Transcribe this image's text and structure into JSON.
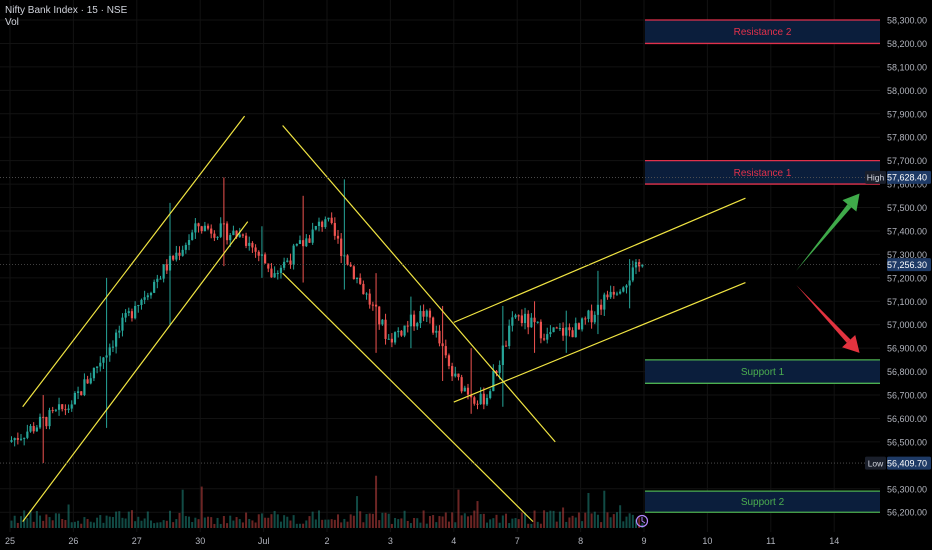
{
  "header": {
    "symbol_line": "Nifty Bank Index · 15 · NSE",
    "volume_label": "Vol"
  },
  "colors": {
    "background": "#000000",
    "up": "#26a69a",
    "down": "#ef5350",
    "channel": "#f0e442",
    "resistance": "#e0314b",
    "support": "#4caf50",
    "zone_fill": "#0b1e3c",
    "axis_text": "#b2b5be",
    "grid": "#121212",
    "arrow_up": "#3faa4a",
    "arrow_down": "#e2333f"
  },
  "chart_data": {
    "type": "candlestick",
    "symbol": "Nifty Bank Index",
    "interval": "15",
    "exchange": "NSE",
    "x_tick_labels": [
      "25",
      "26",
      "27",
      "30",
      "Jul",
      "2",
      "3",
      "4",
      "7",
      "8",
      "9",
      "10",
      "11",
      "14"
    ],
    "y_tick_labels": [
      "58,300.00",
      "58,200.00",
      "58,100.00",
      "58,000.00",
      "57,900.00",
      "57,800.00",
      "57,700.00",
      "57,600.00",
      "57,500.00",
      "57,400.00",
      "57,300.00",
      "57,200.00",
      "57,100.00",
      "57,000.00",
      "56,900.00",
      "56,800.00",
      "56,700.00",
      "56,600.00",
      "56,500.00",
      "56,300.00",
      "56,200.00"
    ],
    "ylim": [
      56150,
      58350
    ],
    "grid": true,
    "price_labels": [
      {
        "tag": "High",
        "value": "57,628.40",
        "price": 57628.4
      },
      {
        "tag": "",
        "value": "57,256.30",
        "price": 57256.3
      },
      {
        "tag": "Low",
        "value": "56,409.70",
        "price": 56409.7
      }
    ],
    "zones": [
      {
        "label": "Resistance 2",
        "kind": "resistance",
        "top": 58300,
        "bottom": 58200
      },
      {
        "label": "Resistance 1",
        "kind": "resistance",
        "top": 57700,
        "bottom": 57600
      },
      {
        "label": "Support 1",
        "kind": "support",
        "top": 56850,
        "bottom": 56750
      },
      {
        "label": "Support 2",
        "kind": "support",
        "top": 56290,
        "bottom": 56200
      }
    ],
    "channels": [
      {
        "name": "rising-channel-1",
        "lines": [
          [
            [
              0.2,
              56650
            ],
            [
              3.7,
              57890
            ]
          ],
          [
            [
              0.2,
              56160
            ],
            [
              3.75,
              57440
            ]
          ]
        ]
      },
      {
        "name": "falling-channel",
        "lines": [
          [
            [
              4.3,
              57850
            ],
            [
              8.6,
              56500
            ]
          ],
          [
            [
              4.3,
              57220
            ],
            [
              8.25,
              56160
            ]
          ]
        ]
      },
      {
        "name": "rising-channel-2",
        "lines": [
          [
            [
              7.0,
              57010
            ],
            [
              11.6,
              57540
            ]
          ],
          [
            [
              7.0,
              56670
            ],
            [
              11.6,
              57180
            ]
          ]
        ]
      }
    ],
    "arrows": [
      {
        "direction": "up",
        "from": [
          12.4,
          57230
        ],
        "to": [
          13.4,
          57560
        ]
      },
      {
        "direction": "down",
        "from": [
          12.4,
          57170
        ],
        "to": [
          13.4,
          56880
        ]
      }
    ],
    "segments": [
      {
        "start": 0.0,
        "end": 1.0,
        "open": 56500,
        "close": 56660,
        "low": 56409.7,
        "high": 56700
      },
      {
        "start": 1.0,
        "end": 2.0,
        "open": 56660,
        "close": 57080,
        "low": 56560,
        "high": 57200
      },
      {
        "start": 2.0,
        "end": 3.0,
        "open": 57080,
        "close": 57420,
        "low": 57000,
        "high": 57520
      },
      {
        "start": 3.0,
        "end": 3.7,
        "open": 57420,
        "close": 57380,
        "low": 57250,
        "high": 57628.4
      },
      {
        "start": 3.7,
        "end": 4.2,
        "open": 57380,
        "close": 57220,
        "low": 57200,
        "high": 57420
      },
      {
        "start": 4.2,
        "end": 5.0,
        "open": 57220,
        "close": 57450,
        "low": 57180,
        "high": 57550
      },
      {
        "start": 5.0,
        "end": 5.5,
        "open": 57450,
        "close": 57200,
        "low": 57150,
        "high": 57620
      },
      {
        "start": 5.5,
        "end": 6.0,
        "open": 57200,
        "close": 56940,
        "low": 56880,
        "high": 57220
      },
      {
        "start": 6.0,
        "end": 6.6,
        "open": 56940,
        "close": 57060,
        "low": 56900,
        "high": 57120
      },
      {
        "start": 6.6,
        "end": 7.0,
        "open": 57060,
        "close": 56780,
        "low": 56760,
        "high": 57080
      },
      {
        "start": 7.0,
        "end": 7.5,
        "open": 56780,
        "close": 56660,
        "low": 56620,
        "high": 56900
      },
      {
        "start": 7.5,
        "end": 8.0,
        "open": 56660,
        "close": 57040,
        "low": 56650,
        "high": 57080
      },
      {
        "start": 8.0,
        "end": 8.5,
        "open": 57040,
        "close": 56960,
        "low": 56880,
        "high": 57100
      },
      {
        "start": 8.5,
        "end": 9.0,
        "open": 56960,
        "close": 56980,
        "low": 56880,
        "high": 57060
      },
      {
        "start": 9.0,
        "end": 9.5,
        "open": 56980,
        "close": 57140,
        "low": 56960,
        "high": 57230
      },
      {
        "start": 9.5,
        "end": 10.0,
        "open": 57140,
        "close": 57256.3,
        "low": 57070,
        "high": 57280
      }
    ]
  }
}
